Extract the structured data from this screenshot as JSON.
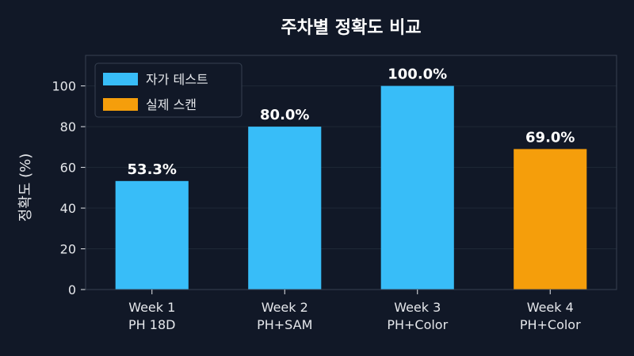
{
  "chart_data": {
    "type": "bar",
    "title": "주차별 정확도 비교",
    "xlabel": "",
    "ylabel": "정확도 (%)",
    "ylim": [
      0,
      115
    ],
    "yticks": [
      0,
      20,
      40,
      60,
      80,
      100
    ],
    "categories": [
      [
        "Week 1",
        "PH 18D"
      ],
      [
        "Week 2",
        "PH+SAM"
      ],
      [
        "Week 3",
        "PH+Color"
      ],
      [
        "Week 4",
        "PH+Color"
      ]
    ],
    "values": [
      53.3,
      80.0,
      100.0,
      69.0
    ],
    "value_labels": [
      "53.3%",
      "80.0%",
      "100.0%",
      "69.0%"
    ],
    "bar_groups": [
      "자가 테스트",
      "자가 테스트",
      "자가 테스트",
      "실제 스캔"
    ],
    "legend": [
      {
        "name": "자가 테스트",
        "color": "#38bdf8"
      },
      {
        "name": "실제 스캔",
        "color": "#f59e0b"
      }
    ],
    "legend_position": "top-left",
    "grid": true
  },
  "colors": {
    "background": "#111827",
    "plot_background": "#111827",
    "grid": "#1f2937",
    "axis": "#374151"
  }
}
